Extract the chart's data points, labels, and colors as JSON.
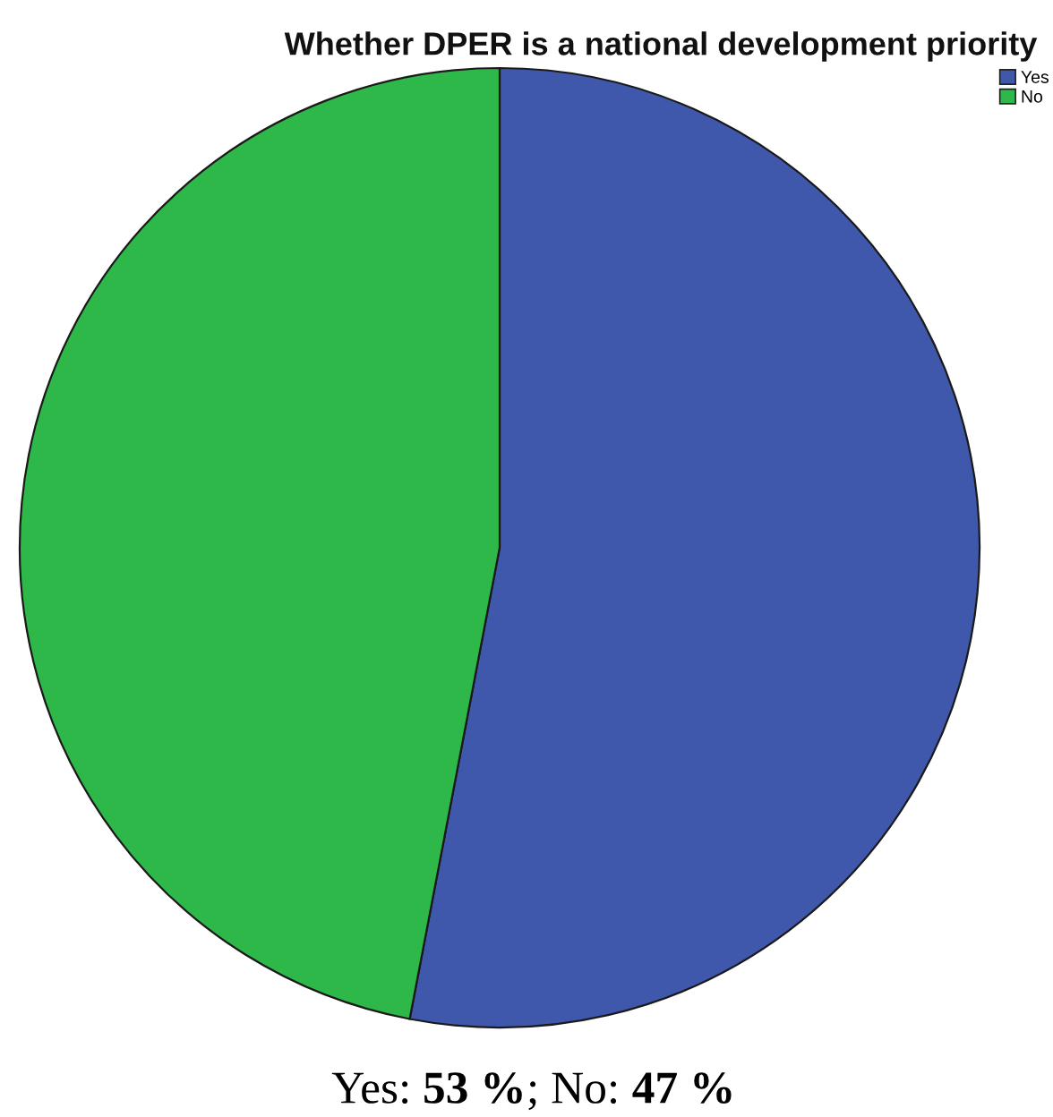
{
  "chart_data": {
    "type": "pie",
    "title": "Whether DPER is a national development priority",
    "categories": [
      "Yes",
      "No"
    ],
    "values": [
      53,
      47
    ],
    "colors": [
      "#3f58ac",
      "#2fb84a"
    ],
    "legend": "top right",
    "annotations": [
      "Yes: 53 %; No: 47 %"
    ]
  }
}
